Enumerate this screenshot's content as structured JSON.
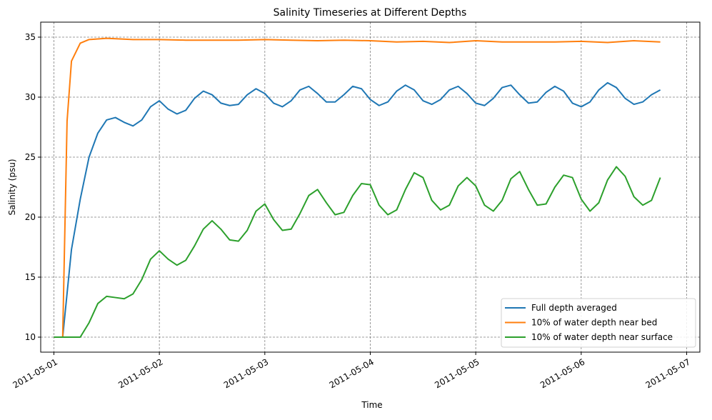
{
  "chart_data": {
    "type": "line",
    "title": "Salinity Timeseries at Different Depths",
    "xlabel": "Time",
    "ylabel": "Salinity (psu)",
    "xlim": [
      "2011-04-30T21:00",
      "2011-05-07T03:00"
    ],
    "ylim": [
      8.75,
      36.25
    ],
    "grid": true,
    "legend_position": "bottom-right",
    "x_ticks": [
      "2011-05-01",
      "2011-05-02",
      "2011-05-03",
      "2011-05-04",
      "2011-05-05",
      "2011-05-06",
      "2011-05-07"
    ],
    "y_ticks": [
      "10",
      "15",
      "20",
      "25",
      "30",
      "35"
    ],
    "series": [
      {
        "name": "Full depth averaged",
        "color": "#1f77b4",
        "points": [
          [
            "2011-05-01T00:00",
            10.0
          ],
          [
            "2011-05-01T02:00",
            10.0
          ],
          [
            "2011-05-01T04:00",
            17.3
          ],
          [
            "2011-05-01T06:00",
            21.5
          ],
          [
            "2011-05-01T08:00",
            25.0
          ],
          [
            "2011-05-01T10:00",
            27.0
          ],
          [
            "2011-05-01T12:00",
            28.1
          ],
          [
            "2011-05-01T14:00",
            28.3
          ],
          [
            "2011-05-01T16:00",
            27.9
          ],
          [
            "2011-05-01T18:00",
            27.6
          ],
          [
            "2011-05-01T20:00",
            28.1
          ],
          [
            "2011-05-01T22:00",
            29.2
          ],
          [
            "2011-05-02T00:00",
            29.7
          ],
          [
            "2011-05-02T02:00",
            29.0
          ],
          [
            "2011-05-02T04:00",
            28.6
          ],
          [
            "2011-05-02T06:00",
            28.9
          ],
          [
            "2011-05-02T08:00",
            29.9
          ],
          [
            "2011-05-02T10:00",
            30.5
          ],
          [
            "2011-05-02T12:00",
            30.2
          ],
          [
            "2011-05-02T14:00",
            29.5
          ],
          [
            "2011-05-02T16:00",
            29.3
          ],
          [
            "2011-05-02T18:00",
            29.4
          ],
          [
            "2011-05-02T20:00",
            30.2
          ],
          [
            "2011-05-02T22:00",
            30.7
          ],
          [
            "2011-05-03T00:00",
            30.3
          ],
          [
            "2011-05-03T02:00",
            29.5
          ],
          [
            "2011-05-03T04:00",
            29.2
          ],
          [
            "2011-05-03T06:00",
            29.7
          ],
          [
            "2011-05-03T08:00",
            30.6
          ],
          [
            "2011-05-03T10:00",
            30.9
          ],
          [
            "2011-05-03T12:00",
            30.3
          ],
          [
            "2011-05-03T14:00",
            29.6
          ],
          [
            "2011-05-03T16:00",
            29.6
          ],
          [
            "2011-05-03T18:00",
            30.2
          ],
          [
            "2011-05-03T20:00",
            30.9
          ],
          [
            "2011-05-03T22:00",
            30.7
          ],
          [
            "2011-05-04T00:00",
            29.8
          ],
          [
            "2011-05-04T02:00",
            29.3
          ],
          [
            "2011-05-04T04:00",
            29.6
          ],
          [
            "2011-05-04T06:00",
            30.5
          ],
          [
            "2011-05-04T08:00",
            31.0
          ],
          [
            "2011-05-04T10:00",
            30.6
          ],
          [
            "2011-05-04T12:00",
            29.7
          ],
          [
            "2011-05-04T14:00",
            29.4
          ],
          [
            "2011-05-04T16:00",
            29.8
          ],
          [
            "2011-05-04T18:00",
            30.6
          ],
          [
            "2011-05-04T20:00",
            30.9
          ],
          [
            "2011-05-04T22:00",
            30.3
          ],
          [
            "2011-05-05T00:00",
            29.5
          ],
          [
            "2011-05-05T02:00",
            29.3
          ],
          [
            "2011-05-05T04:00",
            29.9
          ],
          [
            "2011-05-05T06:00",
            30.8
          ],
          [
            "2011-05-05T08:00",
            31.0
          ],
          [
            "2011-05-05T10:00",
            30.2
          ],
          [
            "2011-05-05T12:00",
            29.5
          ],
          [
            "2011-05-05T14:00",
            29.6
          ],
          [
            "2011-05-05T16:00",
            30.4
          ],
          [
            "2011-05-05T18:00",
            30.9
          ],
          [
            "2011-05-05T20:00",
            30.5
          ],
          [
            "2011-05-05T22:00",
            29.5
          ],
          [
            "2011-05-06T00:00",
            29.2
          ],
          [
            "2011-05-06T02:00",
            29.6
          ],
          [
            "2011-05-06T04:00",
            30.6
          ],
          [
            "2011-05-06T06:00",
            31.2
          ],
          [
            "2011-05-06T08:00",
            30.8
          ],
          [
            "2011-05-06T10:00",
            29.9
          ],
          [
            "2011-05-06T12:00",
            29.4
          ],
          [
            "2011-05-06T14:00",
            29.6
          ],
          [
            "2011-05-06T16:00",
            30.2
          ],
          [
            "2011-05-06T18:00",
            30.6
          ]
        ]
      },
      {
        "name": "10% of water depth near bed",
        "color": "#ff7f0e",
        "points": [
          [
            "2011-05-01T00:00",
            10.0
          ],
          [
            "2011-05-01T02:00",
            10.0
          ],
          [
            "2011-05-01T03:00",
            28.0
          ],
          [
            "2011-05-01T04:00",
            33.0
          ],
          [
            "2011-05-01T06:00",
            34.5
          ],
          [
            "2011-05-01T08:00",
            34.8
          ],
          [
            "2011-05-01T12:00",
            34.9
          ],
          [
            "2011-05-01T18:00",
            34.8
          ],
          [
            "2011-05-02T00:00",
            34.8
          ],
          [
            "2011-05-02T06:00",
            34.75
          ],
          [
            "2011-05-02T12:00",
            34.75
          ],
          [
            "2011-05-02T18:00",
            34.75
          ],
          [
            "2011-05-03T00:00",
            34.8
          ],
          [
            "2011-05-03T06:00",
            34.75
          ],
          [
            "2011-05-03T12:00",
            34.7
          ],
          [
            "2011-05-03T18:00",
            34.75
          ],
          [
            "2011-05-04T00:00",
            34.7
          ],
          [
            "2011-05-04T06:00",
            34.6
          ],
          [
            "2011-05-04T12:00",
            34.65
          ],
          [
            "2011-05-04T18:00",
            34.55
          ],
          [
            "2011-05-05T00:00",
            34.7
          ],
          [
            "2011-05-05T06:00",
            34.6
          ],
          [
            "2011-05-05T12:00",
            34.6
          ],
          [
            "2011-05-05T18:00",
            34.6
          ],
          [
            "2011-05-06T00:00",
            34.65
          ],
          [
            "2011-05-06T06:00",
            34.55
          ],
          [
            "2011-05-06T12:00",
            34.7
          ],
          [
            "2011-05-06T18:00",
            34.6
          ]
        ]
      },
      {
        "name": "10% of water depth near surface",
        "color": "#2ca02c",
        "points": [
          [
            "2011-05-01T00:00",
            10.0
          ],
          [
            "2011-05-01T06:00",
            10.0
          ],
          [
            "2011-05-01T08:00",
            11.2
          ],
          [
            "2011-05-01T10:00",
            12.8
          ],
          [
            "2011-05-01T12:00",
            13.4
          ],
          [
            "2011-05-01T14:00",
            13.3
          ],
          [
            "2011-05-01T16:00",
            13.2
          ],
          [
            "2011-05-01T18:00",
            13.6
          ],
          [
            "2011-05-01T20:00",
            14.8
          ],
          [
            "2011-05-01T22:00",
            16.5
          ],
          [
            "2011-05-02T00:00",
            17.2
          ],
          [
            "2011-05-02T02:00",
            16.5
          ],
          [
            "2011-05-02T04:00",
            16.0
          ],
          [
            "2011-05-02T06:00",
            16.4
          ],
          [
            "2011-05-02T08:00",
            17.6
          ],
          [
            "2011-05-02T10:00",
            19.0
          ],
          [
            "2011-05-02T12:00",
            19.7
          ],
          [
            "2011-05-02T14:00",
            19.0
          ],
          [
            "2011-05-02T16:00",
            18.1
          ],
          [
            "2011-05-02T18:00",
            18.0
          ],
          [
            "2011-05-02T20:00",
            18.9
          ],
          [
            "2011-05-02T22:00",
            20.5
          ],
          [
            "2011-05-03T00:00",
            21.1
          ],
          [
            "2011-05-03T02:00",
            19.8
          ],
          [
            "2011-05-03T04:00",
            18.9
          ],
          [
            "2011-05-03T06:00",
            19.0
          ],
          [
            "2011-05-03T08:00",
            20.3
          ],
          [
            "2011-05-03T10:00",
            21.8
          ],
          [
            "2011-05-03T12:00",
            22.3
          ],
          [
            "2011-05-03T14:00",
            21.2
          ],
          [
            "2011-05-03T16:00",
            20.2
          ],
          [
            "2011-05-03T18:00",
            20.4
          ],
          [
            "2011-05-03T20:00",
            21.8
          ],
          [
            "2011-05-03T22:00",
            22.8
          ],
          [
            "2011-05-04T00:00",
            22.7
          ],
          [
            "2011-05-04T02:00",
            21.0
          ],
          [
            "2011-05-04T04:00",
            20.2
          ],
          [
            "2011-05-04T06:00",
            20.6
          ],
          [
            "2011-05-04T08:00",
            22.3
          ],
          [
            "2011-05-04T10:00",
            23.7
          ],
          [
            "2011-05-04T12:00",
            23.3
          ],
          [
            "2011-05-04T14:00",
            21.4
          ],
          [
            "2011-05-04T16:00",
            20.6
          ],
          [
            "2011-05-04T18:00",
            21.0
          ],
          [
            "2011-05-04T20:00",
            22.6
          ],
          [
            "2011-05-04T22:00",
            23.3
          ],
          [
            "2011-05-05T00:00",
            22.6
          ],
          [
            "2011-05-05T02:00",
            21.0
          ],
          [
            "2011-05-05T04:00",
            20.5
          ],
          [
            "2011-05-05T06:00",
            21.4
          ],
          [
            "2011-05-05T08:00",
            23.2
          ],
          [
            "2011-05-05T10:00",
            23.8
          ],
          [
            "2011-05-05T12:00",
            22.3
          ],
          [
            "2011-05-05T14:00",
            21.0
          ],
          [
            "2011-05-05T16:00",
            21.1
          ],
          [
            "2011-05-05T18:00",
            22.5
          ],
          [
            "2011-05-05T20:00",
            23.5
          ],
          [
            "2011-05-05T22:00",
            23.3
          ],
          [
            "2011-05-06T00:00",
            21.5
          ],
          [
            "2011-05-06T02:00",
            20.5
          ],
          [
            "2011-05-06T04:00",
            21.2
          ],
          [
            "2011-05-06T06:00",
            23.1
          ],
          [
            "2011-05-06T08:00",
            24.2
          ],
          [
            "2011-05-06T10:00",
            23.4
          ],
          [
            "2011-05-06T12:00",
            21.7
          ],
          [
            "2011-05-06T14:00",
            21.0
          ],
          [
            "2011-05-06T16:00",
            21.4
          ],
          [
            "2011-05-06T18:00",
            23.3
          ]
        ]
      }
    ]
  }
}
